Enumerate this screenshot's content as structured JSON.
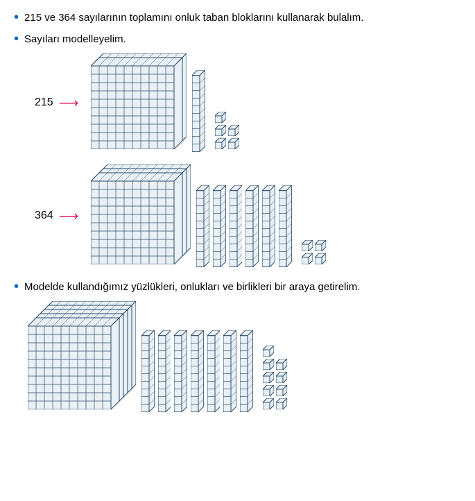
{
  "bullets": {
    "b1": "215 ve 364 sayılarının toplamını onluk taban bloklarını kullanarak bulalım.",
    "b2": "Sayıları modelleyelim.",
    "b3": "Modelde kullandığımız yüzlükleri, onlukları ve birlikleri bir araya getirelim."
  },
  "numbers": {
    "n1": "215",
    "n2": "364"
  },
  "colors": {
    "bullet": "#0066cc",
    "arrow": "#e91e63",
    "block_fill": "#e8f0f5",
    "block_stroke": "#2a4a6a"
  },
  "models": {
    "n1": {
      "hundreds": 2,
      "tens": 1,
      "ones": 5
    },
    "n2": {
      "hundreds": 3,
      "tens": 6,
      "ones": 4
    },
    "sum": {
      "hundreds": 5,
      "tens": 7,
      "ones": 9
    }
  }
}
